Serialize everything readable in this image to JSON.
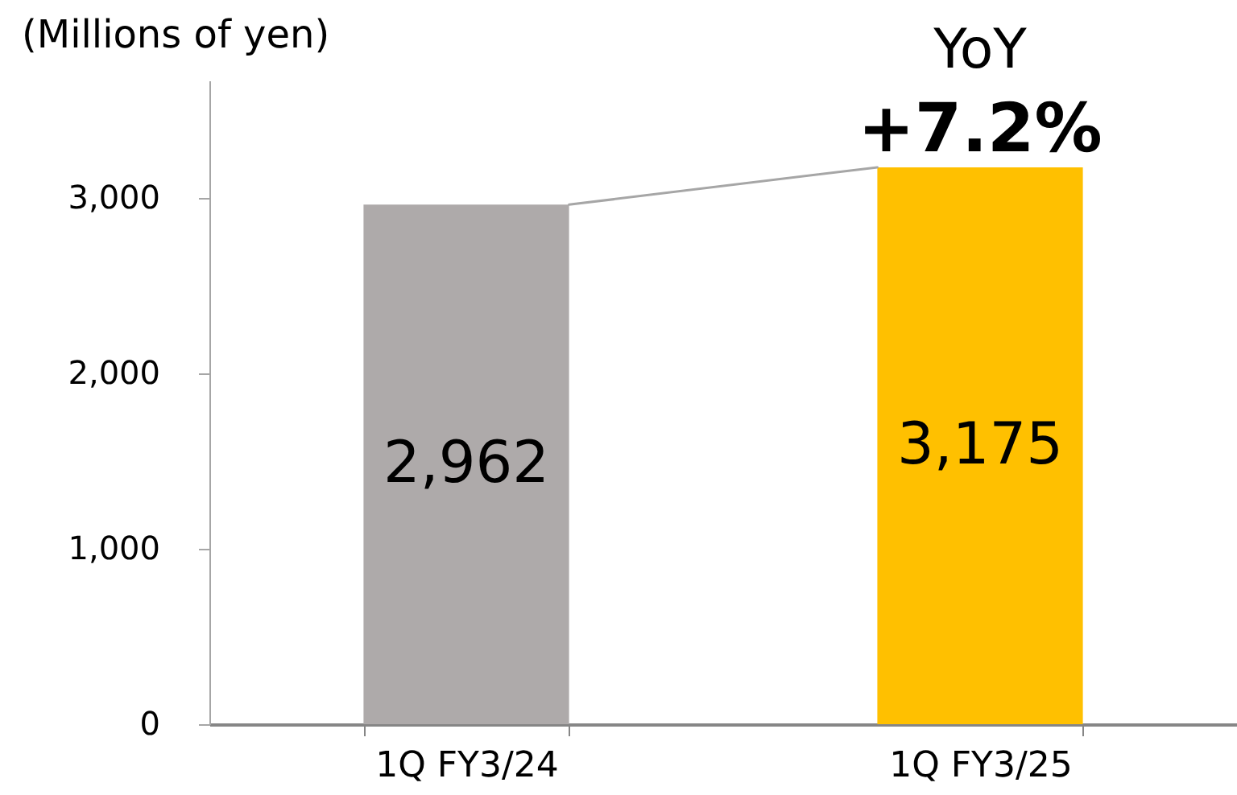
{
  "chart_data": {
    "type": "bar",
    "ylabel": "(Millions of yen)",
    "categories": [
      "1Q FY3/24",
      "1Q FY3/25"
    ],
    "values": [
      2962,
      3175
    ],
    "colors": [
      "#aeaaaa",
      "#ffc000"
    ],
    "value_labels": [
      "2,962",
      "3,175"
    ],
    "annotations": [
      "YoY",
      {
        "text": "+7.2%",
        "x": "1Q FY3/25",
        "y": 3175
      }
    ],
    "ylim": [
      0,
      3670
    ],
    "yticks": [
      0,
      {
        "value": 1000,
        "label": "1,000"
      },
      {
        "value": 2000,
        "label": "2,000"
      },
      {
        "value": 3000,
        "label": "3,000"
      }
    ],
    "grid": false,
    "legend": false
  }
}
